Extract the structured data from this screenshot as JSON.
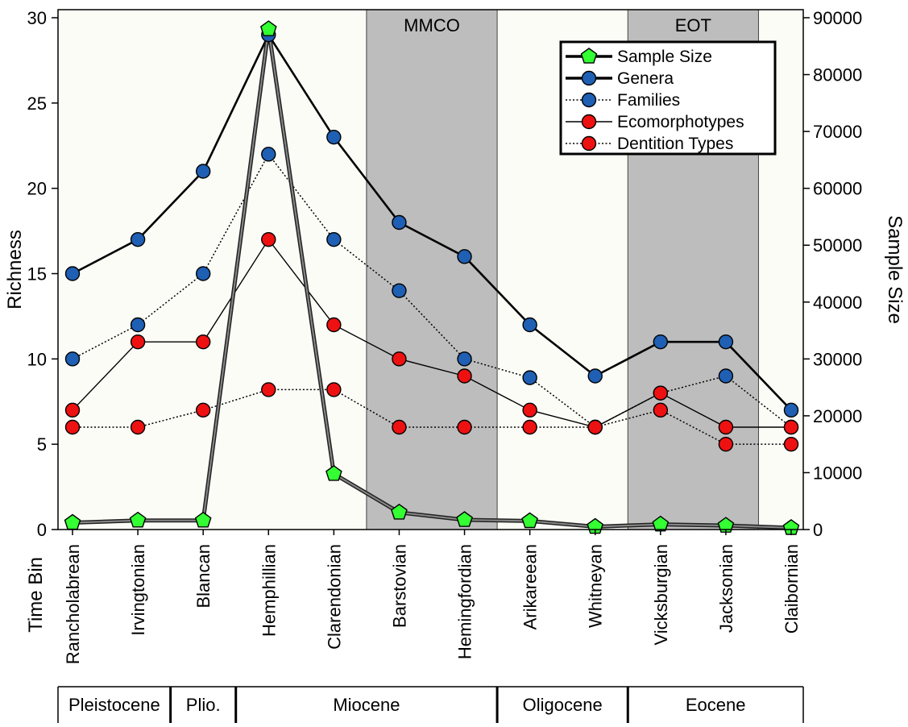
{
  "chart_data": {
    "type": "line",
    "ylabel_left": "Richness",
    "ylabel_right": "Sample Size",
    "xlabel": "Time Bin",
    "ylim_left": [
      0,
      30
    ],
    "yticks_left": [
      "0",
      "5",
      "10",
      "15",
      "20",
      "25",
      "30"
    ],
    "ylim_right": [
      0,
      90000
    ],
    "yticks_right": [
      "0",
      "10000",
      "20000",
      "30000",
      "40000",
      "50000",
      "60000",
      "70000",
      "80000",
      "90000"
    ],
    "categories": [
      "Rancholabrean",
      "Irvingtonian",
      "Blancan",
      "Hemphillian",
      "Clarendonian",
      "Barstovian",
      "Hemingfordian",
      "Arikareean",
      "Whitneyan",
      "Vicksburgian",
      "Jacksonian",
      "Claibornian"
    ],
    "shaded_intervals": [
      {
        "label": "MMCO",
        "from": "Barstovian",
        "to": "Hemingfordian"
      },
      {
        "label": "EOT",
        "from": "Vicksburgian",
        "to": "Jacksonian"
      }
    ],
    "epochs": [
      {
        "label": "Pleistocene",
        "from": 0,
        "to": 1
      },
      {
        "label": "Plio.",
        "from": 2,
        "to": 2
      },
      {
        "label": "Miocene",
        "from": 3,
        "to": 6
      },
      {
        "label": "Oligocene",
        "from": 7,
        "to": 8
      },
      {
        "label": "Eocene",
        "from": 9,
        "to": 11
      }
    ],
    "legend_position": "top-right",
    "series": [
      {
        "name": "Sample Size",
        "axis": "right",
        "color": "#33ff33",
        "marker": "pentagon",
        "line": "solid-thick",
        "values": [
          1200,
          1600,
          1600,
          88000,
          9800,
          3000,
          1700,
          1500,
          500,
          900,
          700,
          300
        ]
      },
      {
        "name": "Genera",
        "axis": "left",
        "color": "#1f5fb4",
        "marker": "circle",
        "line": "solid-thick",
        "values": [
          15,
          17,
          21,
          29,
          23,
          18,
          16,
          12,
          9,
          11,
          11,
          7
        ]
      },
      {
        "name": "Families",
        "axis": "left",
        "color": "#1f5fb4",
        "marker": "circle",
        "line": "dotted",
        "values": [
          10,
          12,
          15,
          22,
          17,
          14,
          10,
          8.9,
          6,
          8,
          9,
          6
        ]
      },
      {
        "name": "Ecomorphotypes",
        "axis": "left",
        "color": "#ee1111",
        "marker": "circle",
        "line": "solid-thin",
        "values": [
          7,
          11,
          11,
          17,
          12,
          10,
          9,
          7,
          6,
          8,
          6,
          6
        ]
      },
      {
        "name": "Dentition Types",
        "axis": "left",
        "color": "#ee1111",
        "marker": "circle",
        "line": "dotted",
        "values": [
          6,
          6,
          7,
          8.2,
          8.2,
          6,
          6,
          6,
          6,
          7,
          5,
          5
        ]
      }
    ]
  }
}
